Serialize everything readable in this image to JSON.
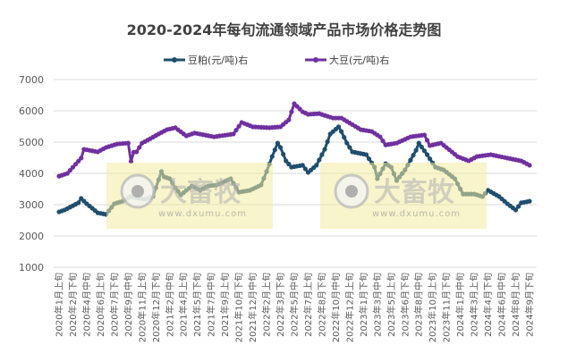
{
  "chart_data": {
    "type": "line",
    "title": "2020-2024年每旬流通领域产品市场价格走势图",
    "xlabel": "",
    "ylabel": "",
    "ylim": [
      1000,
      7000
    ],
    "yticks": [
      1000,
      2000,
      3000,
      4000,
      5000,
      6000,
      7000
    ],
    "grid": true,
    "legend_position": "top",
    "x_period_first": "2020年1月上旬",
    "x_period_last": "2024年9月下旬",
    "xtick_labels": [
      "2020年1月上旬",
      "2020年2月下旬",
      "2020年4月中旬",
      "2020年6月上旬",
      "2020年7月下旬",
      "2020年9月中旬",
      "2020年11月上旬",
      "2020年12月下旬",
      "2021年2月中旬",
      "2021年4月上旬",
      "2021年5月下旬",
      "2021年7月中旬",
      "2021年9月上旬",
      "2021年10月下旬",
      "2021年12月中旬",
      "2022年2月上旬",
      "2022年3月下旬",
      "2022年5月中旬",
      "2022年7月上旬",
      "2022年8月下旬",
      "2022年10月中旬",
      "2022年12月上旬",
      "2023年1月下旬",
      "2023年3月中旬",
      "2023年5月上旬",
      "2023年6月下旬",
      "2023年8月中旬",
      "2023年10月上旬",
      "2023年11月下旬",
      "2024年1月中旬",
      "2024年3月上旬",
      "2024年4月下旬",
      "2024年6月中旬",
      "2024年8月上旬",
      "2024年9月下旬"
    ],
    "series": [
      {
        "name": "豆粕(元/吨)右",
        "color": "#1f4e6e",
        "points": [
          [
            "2020年1月上旬",
            2770
          ],
          [
            "2020年1月下旬",
            2830
          ],
          [
            "2020年3月中旬",
            3060
          ],
          [
            "2020年3月下旬",
            3200
          ],
          [
            "2020年4月中旬",
            3030
          ],
          [
            "2020年5月下旬",
            2740
          ],
          [
            "2020年6月下旬",
            2690
          ],
          [
            "2020年7月下旬",
            3030
          ],
          [
            "2020年8月下旬",
            3110
          ],
          [
            "2020年9月下旬",
            3260
          ],
          [
            "2020年11月中旬",
            3170
          ],
          [
            "2020年12月中旬",
            3260
          ],
          [
            "2020年12月下旬",
            3540
          ],
          [
            "2021年1月中旬",
            4060
          ],
          [
            "2021年1月下旬",
            3890
          ],
          [
            "2021年2月中旬",
            3830
          ],
          [
            "2021年3月上旬",
            3540
          ],
          [
            "2021年3月下旬",
            3310
          ],
          [
            "2021年5月上旬",
            3600
          ],
          [
            "2021年6月上旬",
            3460
          ],
          [
            "2021年7月上旬",
            3600
          ],
          [
            "2021年8月上旬",
            3630
          ],
          [
            "2021年9月下旬",
            3830
          ],
          [
            "2021年10月下旬",
            3400
          ],
          [
            "2021年12月上旬",
            3460
          ],
          [
            "2022年1月中旬",
            3630
          ],
          [
            "2022年2月上旬",
            4060
          ],
          [
            "2022年2月下旬",
            4540
          ],
          [
            "2022年3月中旬",
            4970
          ],
          [
            "2022年3月下旬",
            4830
          ],
          [
            "2022年4月中旬",
            4400
          ],
          [
            "2022年5月上旬",
            4200
          ],
          [
            "2022年6月中旬",
            4260
          ],
          [
            "2022年7月上旬",
            4030
          ],
          [
            "2022年8月上旬",
            4260
          ],
          [
            "2022年9月上旬",
            4770
          ],
          [
            "2022年9月下旬",
            5260
          ],
          [
            "2022年10月下旬",
            5490
          ],
          [
            "2022年11月上旬",
            5340
          ],
          [
            "2022年11月下旬",
            4970
          ],
          [
            "2022年12月中旬",
            4690
          ],
          [
            "2023年2月上旬",
            4600
          ],
          [
            "2023年3月上旬",
            4200
          ],
          [
            "2023年3月中旬",
            3830
          ],
          [
            "2023年4月中旬",
            4310
          ],
          [
            "2023年5月上旬",
            4200
          ],
          [
            "2023年5月下旬",
            3770
          ],
          [
            "2023年6月下旬",
            4110
          ],
          [
            "2023年8月上旬",
            4740
          ],
          [
            "2023年8月中旬",
            4970
          ],
          [
            "2023年9月中旬",
            4600
          ],
          [
            "2023年10月中旬",
            4200
          ],
          [
            "2023年11月中旬",
            4110
          ],
          [
            "2023年12月下旬",
            3830
          ],
          [
            "2024年1月下旬",
            3340
          ],
          [
            "2024年3月上旬",
            3340
          ],
          [
            "2024年4月上旬",
            3260
          ],
          [
            "2024年4月下旬",
            3460
          ],
          [
            "2024年6月上旬",
            3260
          ],
          [
            "2024年7月上旬",
            3030
          ],
          [
            "2024年8月上旬",
            2830
          ],
          [
            "2024年8月下旬",
            3060
          ],
          [
            "2024年9月下旬",
            3110
          ]
        ]
      },
      {
        "name": "大豆(元/吨)右",
        "color": "#7030a0",
        "points": [
          [
            "2020年1月上旬",
            3910
          ],
          [
            "2020年2月上旬",
            4000
          ],
          [
            "2020年3月下旬",
            4490
          ],
          [
            "2020年4月上旬",
            4770
          ],
          [
            "2020年5月下旬",
            4690
          ],
          [
            "2020年6月下旬",
            4830
          ],
          [
            "2020年8月上旬",
            4940
          ],
          [
            "2020年9月中旬",
            4970
          ],
          [
            "2020年9月下旬",
            4380
          ],
          [
            "2020年10月上旬",
            4680
          ],
          [
            "2020年10月中旬",
            4690
          ],
          [
            "2020年11月上旬",
            4970
          ],
          [
            "2020年12月上旬",
            5110
          ],
          [
            "2021年1月上旬",
            5260
          ],
          [
            "2021年2月上旬",
            5400
          ],
          [
            "2021年3月上旬",
            5460
          ],
          [
            "2021年4月中旬",
            5200
          ],
          [
            "2021年5月中旬",
            5290
          ],
          [
            "2021年7月下旬",
            5170
          ],
          [
            "2021年10月上旬",
            5260
          ],
          [
            "2021年11月上旬",
            5630
          ],
          [
            "2021年12月中旬",
            5490
          ],
          [
            "2022年2月中旬",
            5460
          ],
          [
            "2022年3月下旬",
            5490
          ],
          [
            "2022年4月下旬",
            5710
          ],
          [
            "2022年5月中旬",
            6230
          ],
          [
            "2022年6月中旬",
            5970
          ],
          [
            "2022年7月上旬",
            5890
          ],
          [
            "2022年8月中旬",
            5910
          ],
          [
            "2022年10月上旬",
            5770
          ],
          [
            "2022年11月上旬",
            5770
          ],
          [
            "2023年1月中旬",
            5400
          ],
          [
            "2023年2月下旬",
            5340
          ],
          [
            "2023年3月下旬",
            5170
          ],
          [
            "2023年4月中旬",
            4910
          ],
          [
            "2023年5月下旬",
            4970
          ],
          [
            "2023年7月中旬",
            5170
          ],
          [
            "2023年9月上旬",
            5230
          ],
          [
            "2023年9月下旬",
            4890
          ],
          [
            "2023年11月上旬",
            4970
          ],
          [
            "2024年1月上旬",
            4540
          ],
          [
            "2024年2月中旬",
            4400
          ],
          [
            "2024年3月中旬",
            4540
          ],
          [
            "2024年5月上旬",
            4600
          ],
          [
            "2024年7月上旬",
            4490
          ],
          [
            "2024年8月下旬",
            4400
          ],
          [
            "2024年9月下旬",
            4260
          ]
        ]
      }
    ]
  },
  "watermark": {
    "brand": "大畜牧",
    "url": "www.dxumu.com"
  }
}
